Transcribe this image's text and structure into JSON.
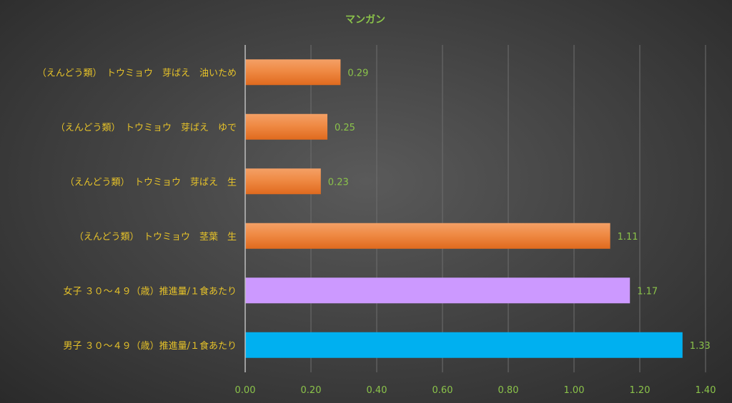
{
  "chart_data": {
    "type": "bar",
    "orientation": "horizontal",
    "title": "マンガン",
    "categories": [
      "（えんどう類）　トウミョウ　芽ばえ　油いため",
      "（えんどう類）　トウミョウ　芽ばえ　ゆで",
      "（えんどう類）　トウミョウ　芽ばえ　生",
      "（えんどう類）　トウミョウ　茎葉　生",
      "女子 ３０～４９（歳）推進量/１食あたり",
      "男子 ３０～４９（歳）推進量/１食あたり"
    ],
    "values": [
      0.29,
      0.25,
      0.23,
      1.11,
      1.17,
      1.33
    ],
    "value_labels": [
      "0.29",
      "0.25",
      "0.23",
      "1.11",
      "1.17",
      "1.33"
    ],
    "bar_colors": [
      "#ed7d31",
      "#ed7d31",
      "#ed7d31",
      "#ed7d31",
      "#cc99ff",
      "#00b0f0"
    ],
    "xlim": [
      0,
      1.4
    ],
    "xticks": [
      "0.00",
      "0.20",
      "0.40",
      "0.60",
      "0.80",
      "1.00",
      "1.20",
      "1.40"
    ],
    "xlabel": "",
    "ylabel": "",
    "grid": true
  }
}
